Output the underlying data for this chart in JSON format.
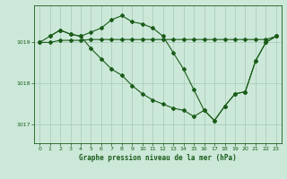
{
  "title": "Graphe pression niveau de la mer (hPa)",
  "bg_color": "#cce8d8",
  "grid_color": "#a8c8b8",
  "line_color": "#1a5c1a",
  "ylim": [
    1016.55,
    1019.9
  ],
  "yticks": [
    1017,
    1018,
    1019
  ],
  "xlim": [
    -0.5,
    23.5
  ],
  "xticks": [
    0,
    1,
    2,
    3,
    4,
    5,
    6,
    7,
    8,
    9,
    10,
    11,
    12,
    13,
    14,
    15,
    16,
    17,
    18,
    19,
    20,
    21,
    22,
    23
  ],
  "series1_x": [
    0,
    1,
    2,
    3,
    4,
    5,
    6,
    7,
    8,
    9,
    10,
    11,
    12,
    13,
    14,
    15,
    16,
    17,
    18,
    19,
    20,
    21,
    22,
    23
  ],
  "series1_y": [
    1019.0,
    1019.15,
    1019.3,
    1019.2,
    1019.15,
    1019.25,
    1019.35,
    1019.55,
    1019.65,
    1019.5,
    1019.45,
    1019.35,
    1019.15,
    1018.75,
    1018.35,
    1017.85,
    1017.35,
    1017.1,
    1017.45,
    1017.75,
    1017.8,
    1018.55,
    1019.0,
    1019.15
  ],
  "series2_x": [
    0,
    1,
    2,
    3,
    4,
    5,
    6,
    7,
    8,
    9,
    10,
    11,
    12,
    13,
    14,
    15,
    16,
    17,
    18,
    19,
    20,
    21,
    22,
    23
  ],
  "series2_y": [
    1019.0,
    1019.0,
    1019.05,
    1019.05,
    1019.05,
    1019.07,
    1019.07,
    1019.07,
    1019.07,
    1019.07,
    1019.07,
    1019.07,
    1019.07,
    1019.07,
    1019.07,
    1019.07,
    1019.07,
    1019.07,
    1019.07,
    1019.07,
    1019.07,
    1019.07,
    1019.07,
    1019.15
  ],
  "series3_x": [
    1,
    2,
    3,
    4,
    5,
    6,
    7,
    8,
    9,
    10,
    11,
    12,
    13,
    14,
    15,
    16,
    17,
    18,
    19,
    20,
    21,
    22,
    23
  ],
  "series3_y": [
    1019.15,
    1019.3,
    1019.2,
    1019.15,
    1018.85,
    1018.6,
    1018.35,
    1018.2,
    1017.95,
    1017.75,
    1017.6,
    1017.5,
    1017.4,
    1017.35,
    1017.2,
    1017.35,
    1017.1,
    1017.45,
    1017.75,
    1017.8,
    1018.55,
    1019.0,
    1019.15
  ]
}
